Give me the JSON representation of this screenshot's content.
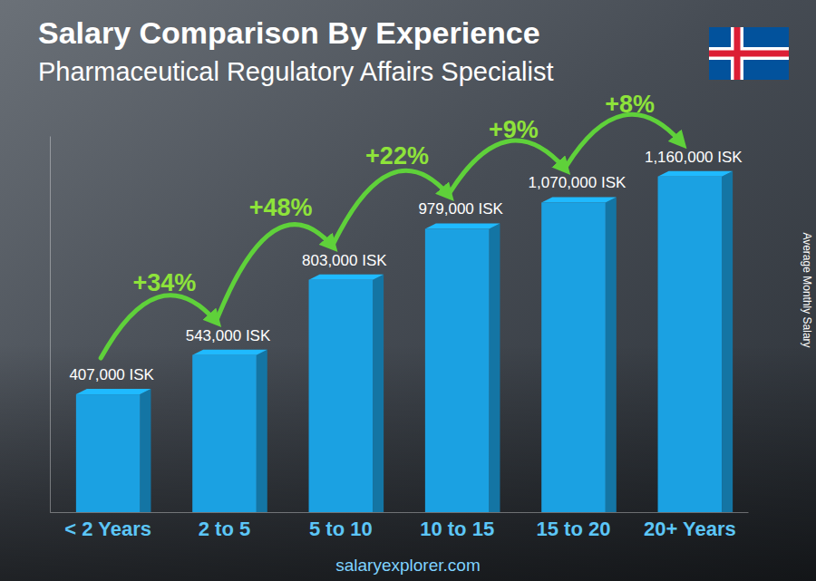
{
  "chart_data": {
    "type": "bar",
    "title": "Salary Comparison By Experience",
    "subtitle": "Pharmaceutical Regulatory Affairs Specialist",
    "ylabel": "Average Monthly Salary",
    "source": "salaryexplorer.com",
    "categories": [
      "< 2 Years",
      "2 to 5",
      "5 to 10",
      "10 to 15",
      "15 to 20",
      "20+ Years"
    ],
    "values": [
      407000,
      543000,
      803000,
      979000,
      1070000,
      1160000
    ],
    "value_labels": [
      "407,000 ISK",
      "543,000 ISK",
      "803,000 ISK",
      "979,000 ISK",
      "1,070,000 ISK",
      "1,160,000 ISK"
    ],
    "annotations": [
      "+34%",
      "+48%",
      "+22%",
      "+9%",
      "+8%"
    ],
    "color": "#1ba1e2",
    "ylim": [
      0,
      1300000
    ],
    "grid": false,
    "data_labels": true,
    "tick_labels": "x"
  }
}
